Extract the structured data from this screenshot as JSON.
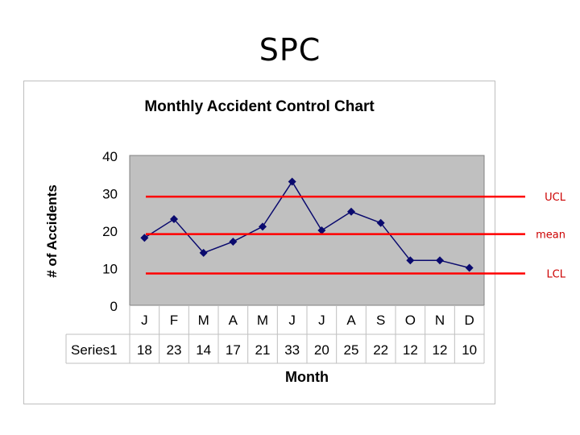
{
  "slide": {
    "title": "SPC"
  },
  "chart_data": {
    "type": "line",
    "title": "Monthly Accident Control Chart",
    "xlabel": "Month",
    "ylabel": "# of Accidents",
    "ylim": [
      0,
      40
    ],
    "yticks": [
      0,
      10,
      20,
      30,
      40
    ],
    "categories": [
      "J",
      "F",
      "M",
      "A",
      "M",
      "J",
      "J",
      "A",
      "S",
      "O",
      "N",
      "D"
    ],
    "series": [
      {
        "name": "Series1",
        "values": [
          18,
          23,
          14,
          17,
          21,
          33,
          20,
          25,
          22,
          12,
          12,
          10
        ],
        "color": "#0a0a6e"
      }
    ],
    "data_table": true,
    "plot_background": "#c0c0c0",
    "grid": false,
    "legend": "none",
    "control_lines": [
      {
        "label": "UCL",
        "value": 29
      },
      {
        "label": "mean",
        "value": 19
      },
      {
        "label": "LCL",
        "value": 8.5
      }
    ],
    "control_line_color": "#ff0000",
    "control_label_color": "#cc0000"
  }
}
